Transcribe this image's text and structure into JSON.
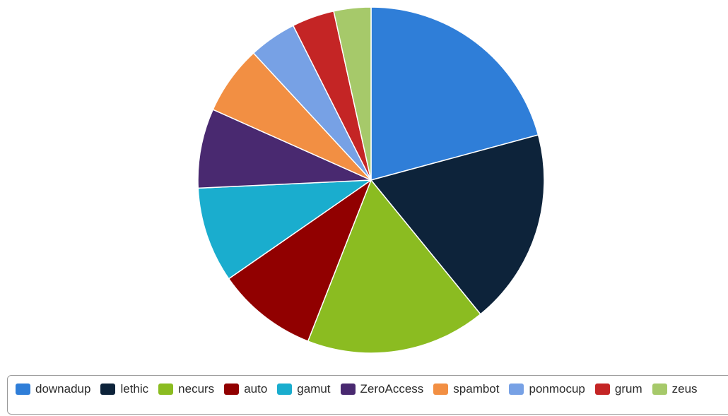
{
  "chart_data": {
    "type": "pie",
    "title": "",
    "legend_placement": "bottom",
    "start_angle_deg": 0,
    "direction": "clockwise",
    "series": [
      {
        "name": "downadup",
        "value": 21.0,
        "color": "#2f7ed8"
      },
      {
        "name": "lethic",
        "value": 18.5,
        "color": "#0d233a"
      },
      {
        "name": "necurs",
        "value": 17.0,
        "color": "#8bbc21"
      },
      {
        "name": "auto",
        "value": 9.5,
        "color": "#910000"
      },
      {
        "name": "gamut",
        "value": 9.0,
        "color": "#1aadce"
      },
      {
        "name": "ZeroAccess",
        "value": 7.5,
        "color": "#492970"
      },
      {
        "name": "spambot",
        "value": 6.5,
        "color": "#f28f43"
      },
      {
        "name": "ponmocup",
        "value": 4.5,
        "color": "#77a1e5"
      },
      {
        "name": "grum",
        "value": 4.0,
        "color": "#c42525"
      },
      {
        "name": "zeus",
        "value": 3.5,
        "color": "#a6c96a"
      }
    ]
  }
}
